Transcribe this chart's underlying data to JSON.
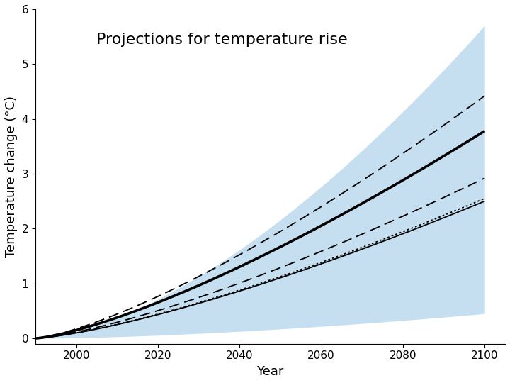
{
  "title": "Projections for temperature rise",
  "xlabel": "Year",
  "ylabel": "Temperature change (°C)",
  "x_start": 1990,
  "x_end": 2100,
  "ylim": [
    -0.1,
    6
  ],
  "xlim": [
    1990,
    2105
  ],
  "xticks": [
    2000,
    2020,
    2040,
    2060,
    2080,
    2100
  ],
  "yticks": [
    0,
    1,
    2,
    3,
    4,
    5,
    6
  ],
  "background_color": "#ffffff",
  "shade_color": "#c6dff0",
  "shade_alpha": 1.0,
  "title_fontsize": 16,
  "axis_label_fontsize": 13,
  "lines": [
    {
      "name": "thick_solid",
      "slope": 0.0343,
      "lw": 2.6,
      "ls": "solid",
      "color": "black"
    },
    {
      "name": "thin_solid",
      "slope": 0.0227,
      "lw": 1.3,
      "ls": "solid",
      "color": "black"
    },
    {
      "name": "dotted",
      "slope": 0.0233,
      "lw": 1.3,
      "ls": "dotted",
      "color": "black"
    },
    {
      "name": "dash_dot",
      "slope": 0.0264,
      "lw": 1.3,
      "ls": "dashed",
      "color": "black"
    },
    {
      "name": "dashed_high",
      "slope": 0.0405,
      "lw": 1.3,
      "ls": "dashed",
      "color": "black"
    }
  ],
  "shade_upper_slope": 0.052,
  "shade_upper_intercept_year": 2035,
  "shade_lower_slope": 0.005,
  "shade_lower_intercept_year": 2035
}
